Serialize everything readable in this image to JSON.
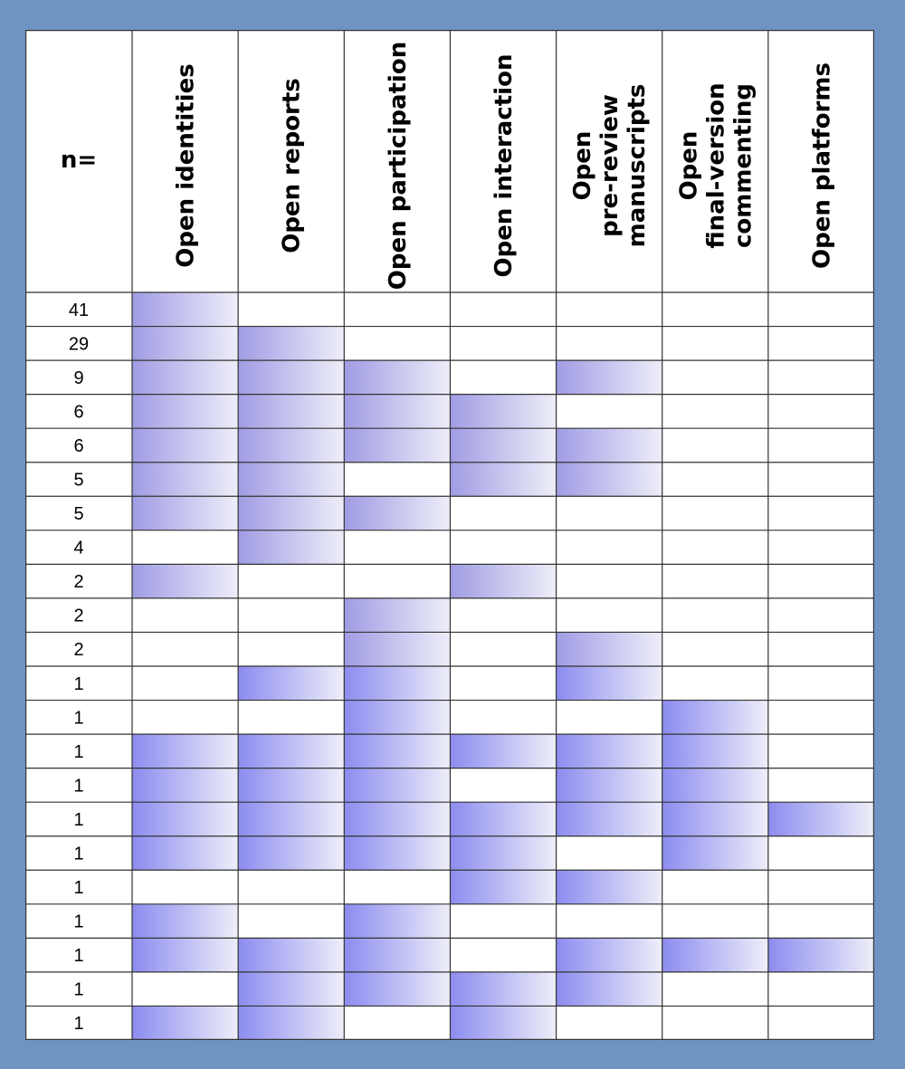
{
  "chart_data": {
    "type": "table",
    "n_header": "n=",
    "columns": [
      [
        "Open identities"
      ],
      [
        "Open reports"
      ],
      [
        "Open participation"
      ],
      [
        "Open interaction"
      ],
      [
        "Open",
        "pre-review",
        "manuscripts"
      ],
      [
        "Open",
        "final-version",
        "commenting"
      ],
      [
        "Open platforms"
      ]
    ],
    "rows": [
      {
        "n": "41",
        "cells": [
          1,
          0,
          0,
          0,
          0,
          0,
          0
        ]
      },
      {
        "n": "29",
        "cells": [
          1,
          1,
          0,
          0,
          0,
          0,
          0
        ]
      },
      {
        "n": "9",
        "cells": [
          1,
          1,
          1,
          0,
          1,
          0,
          0
        ]
      },
      {
        "n": "6",
        "cells": [
          1,
          1,
          1,
          1,
          0,
          0,
          0
        ]
      },
      {
        "n": "6",
        "cells": [
          1,
          1,
          1,
          1,
          1,
          0,
          0
        ]
      },
      {
        "n": "5",
        "cells": [
          1,
          1,
          0,
          1,
          1,
          0,
          0
        ]
      },
      {
        "n": "5",
        "cells": [
          1,
          1,
          1,
          0,
          0,
          0,
          0
        ]
      },
      {
        "n": "4",
        "cells": [
          0,
          1,
          0,
          0,
          0,
          0,
          0
        ]
      },
      {
        "n": "2",
        "cells": [
          1,
          0,
          0,
          1,
          0,
          0,
          0
        ]
      },
      {
        "n": "2",
        "cells": [
          0,
          0,
          1,
          0,
          0,
          0,
          0
        ]
      },
      {
        "n": "2",
        "cells": [
          0,
          0,
          1,
          0,
          1,
          0,
          0
        ]
      },
      {
        "n": "1",
        "cells": [
          0,
          1,
          1,
          0,
          1,
          0,
          0
        ]
      },
      {
        "n": "1",
        "cells": [
          0,
          0,
          1,
          0,
          0,
          1,
          0
        ]
      },
      {
        "n": "1",
        "cells": [
          1,
          1,
          1,
          1,
          1,
          1,
          0
        ]
      },
      {
        "n": "1",
        "cells": [
          1,
          1,
          1,
          0,
          1,
          1,
          0
        ]
      },
      {
        "n": "1",
        "cells": [
          1,
          1,
          1,
          1,
          1,
          1,
          1
        ]
      },
      {
        "n": "1",
        "cells": [
          1,
          1,
          1,
          1,
          0,
          1,
          0
        ]
      },
      {
        "n": "1",
        "cells": [
          0,
          0,
          0,
          1,
          1,
          0,
          0
        ]
      },
      {
        "n": "1",
        "cells": [
          1,
          0,
          1,
          0,
          0,
          0,
          0
        ]
      },
      {
        "n": "1",
        "cells": [
          1,
          1,
          1,
          0,
          1,
          1,
          1
        ]
      },
      {
        "n": "1",
        "cells": [
          0,
          1,
          1,
          1,
          1,
          0,
          0
        ]
      },
      {
        "n": "1",
        "cells": [
          1,
          1,
          0,
          1,
          0,
          0,
          0
        ]
      }
    ],
    "colors": {
      "background": "#6f94c3",
      "fill_upper_start": "#a09ce4",
      "fill_lower_start": "#8c8cf0",
      "fill_end": "#eeeef9",
      "grid_line": "#333333"
    }
  }
}
